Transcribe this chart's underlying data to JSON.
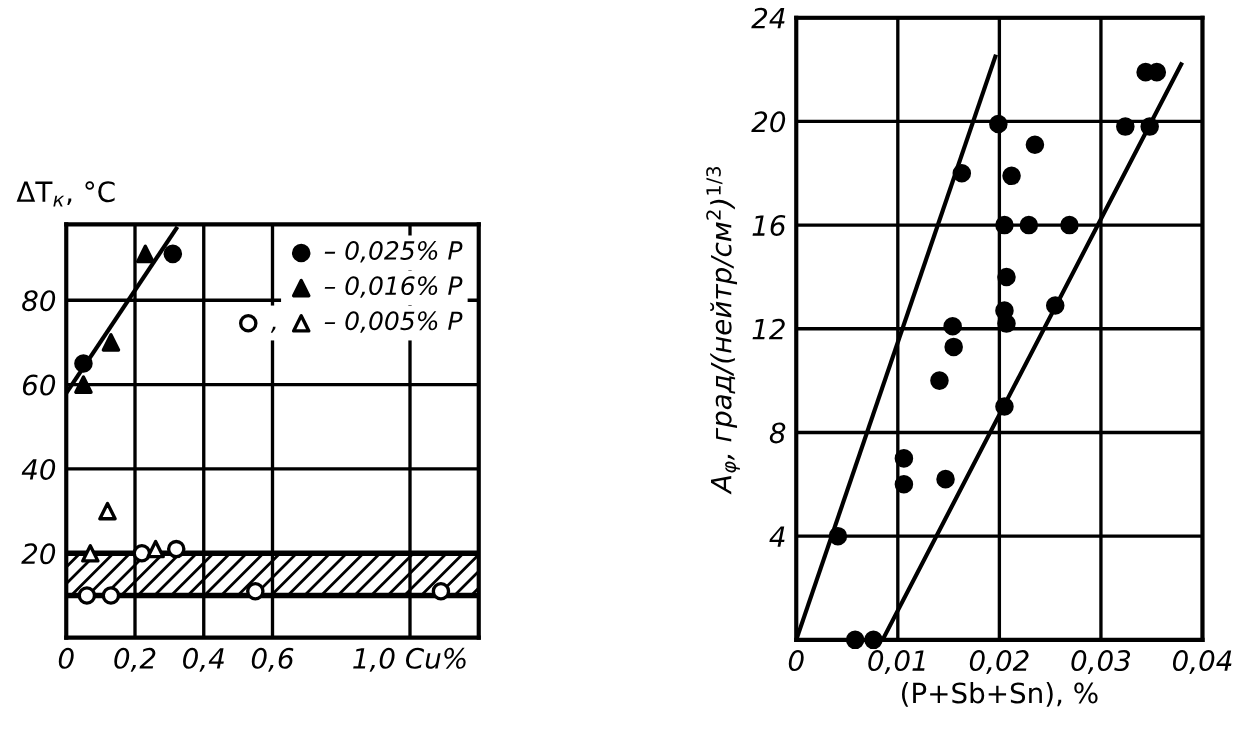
{
  "chart_data": [
    {
      "type": "scatter",
      "ylabel": "ΔT$_{к}$, °C",
      "xlim": [
        0,
        1.2
      ],
      "ylim": [
        0,
        98
      ],
      "xticks": [
        0,
        {
          "value": 0.2,
          "label": "0,2"
        },
        {
          "value": 0.4,
          "label": "0,4"
        },
        {
          "value": 0.6,
          "label": "0,6"
        },
        {
          "value": 1.0,
          "label": "1,0 Cu%"
        }
      ],
      "yticks": [
        20,
        40,
        60,
        80
      ],
      "grid": true,
      "legend": "top right",
      "bands": [
        {
          "axis": "y",
          "from": 10,
          "to": 20,
          "color": "#000000"
        }
      ],
      "ref_lines": [
        {
          "axis": "y",
          "value": 10,
          "color": "#000000"
        },
        {
          "axis": "y",
          "value": 20,
          "color": "#000000"
        }
      ],
      "series": [
        {
          "name": "– 0,025% P",
          "color": "#000000",
          "marker": "circle",
          "x": [
            0.05,
            0.31
          ],
          "values": [
            65,
            91
          ]
        },
        {
          "name": "– 0,016% P",
          "color": "#000000",
          "marker": "triangle",
          "x": [
            0.05,
            0.13,
            0.23
          ],
          "values": [
            60,
            70,
            91
          ]
        },
        {
          "name": ",",
          "color": "#ffffff",
          "marker": "circle",
          "x": [
            0.06,
            0.13,
            0.22,
            0.32,
            0.55,
            1.09
          ],
          "values": [
            10,
            10,
            20,
            21,
            11,
            11
          ]
        },
        {
          "name": "– 0,005% P",
          "color": "#ffffff",
          "marker": "triangle",
          "x": [
            0.07,
            0.12,
            0.26
          ],
          "values": [
            20,
            30,
            21
          ]
        },
        {
          "type": "line",
          "color": "#000000",
          "marker": "none",
          "x": [
            0,
            0.32
          ],
          "values": [
            58,
            97
          ]
        }
      ]
    },
    {
      "type": "scatter",
      "ylabel": "A$_{φ}$, град/(нейтр/см$^{2}$)$^{1/3}$",
      "xlabel": "(P+Sb+Sn), %",
      "xlim": [
        0,
        0.04
      ],
      "ylim": [
        0,
        24
      ],
      "xticks": [
        0,
        {
          "value": 0.01,
          "label": "0,01"
        },
        {
          "value": 0.02,
          "label": "0,02"
        },
        {
          "value": 0.03,
          "label": "0,03"
        },
        {
          "value": 0.04,
          "label": "0,04"
        }
      ],
      "yticks": [
        {
          "value": 0,
          "label": null
        },
        4,
        8,
        12,
        16,
        20,
        24
      ],
      "grid": true,
      "series": [
        {
          "color": "#000000",
          "marker": "circle",
          "x": [
            0.0041,
            0.0058,
            0.0076,
            0.0106,
            0.0106,
            0.0147,
            0.0141,
            0.0155,
            0.0154,
            0.0163,
            0.0199,
            0.0205,
            0.0207,
            0.0205,
            0.0207,
            0.0205,
            0.0212,
            0.0235,
            0.0229,
            0.0269,
            0.0255,
            0.0324,
            0.0348,
            0.0344,
            0.0355
          ],
          "values": [
            4,
            0,
            0,
            7,
            6,
            6.2,
            10,
            11.3,
            12.1,
            18,
            19.9,
            16,
            14,
            12.7,
            12.2,
            9,
            17.9,
            19.1,
            16,
            16,
            12.9,
            19.8,
            19.8,
            21.9,
            21.9
          ]
        },
        {
          "type": "line",
          "color": "#000000",
          "marker": "none",
          "x": [
            0,
            0.0196
          ],
          "values": [
            0,
            22.5
          ]
        },
        {
          "type": "line",
          "color": "#000000",
          "marker": "none",
          "x": [
            0.0085,
            0.0379
          ],
          "values": [
            0,
            22.2
          ]
        }
      ]
    }
  ]
}
